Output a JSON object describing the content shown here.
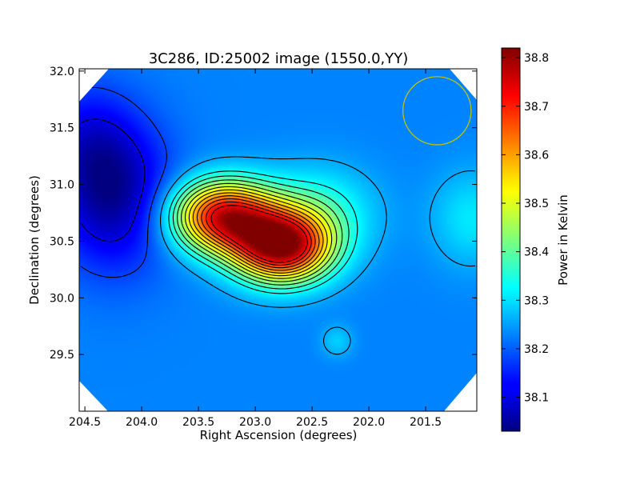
{
  "chart_data": {
    "type": "heatmap",
    "title": "3C286, ID:25002 image (1550.0,YY)",
    "xlabel": "Right Ascension (degrees)",
    "ylabel": "Declination (degrees)",
    "colorbar_label": "Power in Kelvin",
    "xlim": [
      204.55,
      201.05
    ],
    "ylim": [
      29.0,
      32.02
    ],
    "x_ticks": [
      204.5,
      204.0,
      203.5,
      203.0,
      202.5,
      202.0,
      201.5
    ],
    "x_tick_labels": [
      "204.5",
      "204.0",
      "203.5",
      "203.0",
      "202.5",
      "202.0",
      "201.5"
    ],
    "y_ticks": [
      29.5,
      30.0,
      30.5,
      31.0,
      31.5,
      32.0
    ],
    "y_tick_labels": [
      "29.5",
      "30.0",
      "30.5",
      "31.0",
      "31.5",
      "32.0"
    ],
    "colorbar_range": [
      38.03,
      38.82
    ],
    "colorbar_ticks": [
      38.1,
      38.2,
      38.3,
      38.4,
      38.5,
      38.6,
      38.7,
      38.8
    ],
    "colorbar_tick_labels": [
      "38.1",
      "38.2",
      "38.3",
      "38.4",
      "38.5",
      "38.6",
      "38.7",
      "38.8"
    ],
    "colormap": "jet",
    "background_level": 38.23,
    "components": [
      {
        "ra": 203.28,
        "dec": 30.72,
        "amp": 0.5,
        "sigma_ra": 0.32,
        "sigma_dec": 0.22
      },
      {
        "ra": 202.77,
        "dec": 30.45,
        "amp": 0.55,
        "sigma_ra": 0.3,
        "sigma_dec": 0.22
      },
      {
        "ra": 202.45,
        "dec": 30.75,
        "amp": 0.12,
        "sigma_ra": 0.35,
        "sigma_dec": 0.28
      },
      {
        "ra": 204.25,
        "dec": 30.9,
        "amp": -0.18,
        "sigma_ra": 0.35,
        "sigma_dec": 0.45
      },
      {
        "ra": 204.5,
        "dec": 31.4,
        "amp": -0.08,
        "sigma_ra": 0.3,
        "sigma_dec": 0.35
      },
      {
        "ra": 201.1,
        "dec": 30.7,
        "amp": 0.08,
        "sigma_ra": 0.25,
        "sigma_dec": 0.3
      },
      {
        "ra": 202.28,
        "dec": 29.62,
        "amp": 0.06,
        "sigma_ra": 0.1,
        "sigma_dec": 0.1
      }
    ],
    "contour_levels": [
      38.11,
      38.18,
      38.26,
      38.33,
      38.37,
      38.41,
      38.45,
      38.49,
      38.53,
      38.57,
      38.61,
      38.65,
      38.69,
      38.73
    ],
    "beam_circle": {
      "ra": 201.4,
      "dec": 31.65,
      "radius_deg": 0.3,
      "color": "#c8c800"
    },
    "blank_corner_color": "#ffffff"
  }
}
